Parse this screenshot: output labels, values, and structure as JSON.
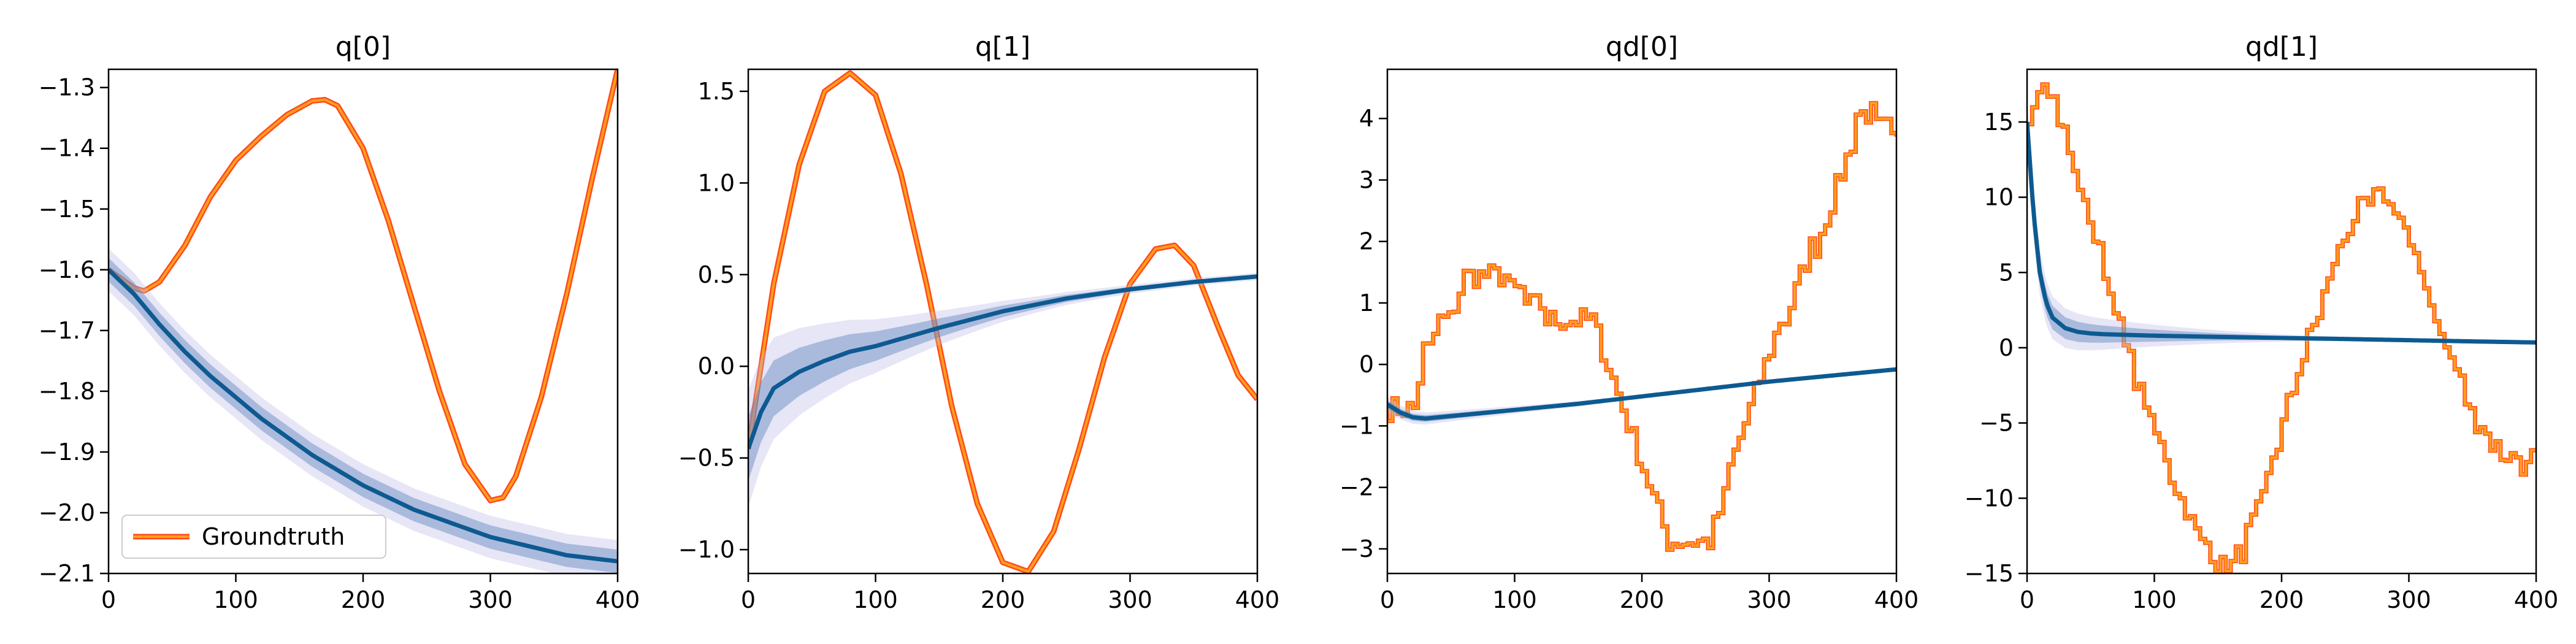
{
  "chart_data": [
    {
      "type": "line",
      "title": "q[0]",
      "xlim": [
        0,
        400
      ],
      "ylim": [
        -2.1,
        -1.27
      ],
      "xticks": [
        0,
        100,
        200,
        300,
        400
      ],
      "yticks": [
        -2.1,
        -2.0,
        -1.9,
        -1.8,
        -1.7,
        -1.6,
        -1.5,
        -1.4,
        -1.3
      ],
      "ytick_labels": [
        "−2.1",
        "−2.0",
        "−1.9",
        "−1.8",
        "−1.7",
        "−1.6",
        "−1.5",
        "−1.4",
        "−1.3"
      ],
      "legend": {
        "label": "Groundtruth",
        "position": "lower-left"
      },
      "series": [
        {
          "name": "Groundtruth",
          "kind": "groundtruth",
          "x": [
            0,
            10,
            20,
            28,
            40,
            60,
            80,
            100,
            120,
            140,
            160,
            170,
            180,
            200,
            220,
            240,
            260,
            280,
            300,
            310,
            320,
            340,
            360,
            380,
            400
          ],
          "y": [
            -1.6,
            -1.615,
            -1.63,
            -1.635,
            -1.62,
            -1.56,
            -1.48,
            -1.42,
            -1.38,
            -1.345,
            -1.322,
            -1.32,
            -1.33,
            -1.4,
            -1.52,
            -1.66,
            -1.8,
            -1.92,
            -1.98,
            -1.975,
            -1.94,
            -1.81,
            -1.64,
            -1.45,
            -1.27
          ]
        },
        {
          "kind": "density",
          "x": [
            0,
            20,
            40,
            60,
            80,
            100,
            120,
            140,
            160,
            180,
            200,
            220,
            240,
            260,
            280,
            300,
            320,
            340,
            360,
            380,
            400
          ],
          "y": [
            -1.6,
            -1.64,
            -1.69,
            -1.735,
            -1.775,
            -1.81,
            -1.845,
            -1.875,
            -1.905,
            -1.93,
            -1.955,
            -1.975,
            -1.995,
            -2.01,
            -2.025,
            -2.04,
            -2.05,
            -2.06,
            -2.07,
            -2.075,
            -2.08
          ],
          "spread_start": 0.0,
          "spread_end": 0.035
        }
      ]
    },
    {
      "type": "line",
      "title": "q[1]",
      "xlim": [
        0,
        400
      ],
      "ylim": [
        -1.13,
        1.62
      ],
      "xticks": [
        0,
        100,
        200,
        300,
        400
      ],
      "yticks": [
        -1.0,
        -0.5,
        0.0,
        0.5,
        1.0,
        1.5
      ],
      "ytick_labels": [
        "−1.0",
        "−0.5",
        "0.0",
        "0.5",
        "1.0",
        "1.5"
      ],
      "series": [
        {
          "name": "Groundtruth",
          "kind": "groundtruth",
          "x": [
            0,
            10,
            20,
            40,
            60,
            80,
            100,
            120,
            140,
            160,
            180,
            200,
            220,
            240,
            260,
            280,
            300,
            320,
            335,
            350,
            370,
            385,
            400
          ],
          "y": [
            -0.45,
            0.0,
            0.45,
            1.1,
            1.5,
            1.6,
            1.48,
            1.05,
            0.45,
            -0.22,
            -0.75,
            -1.07,
            -1.12,
            -0.9,
            -0.45,
            0.05,
            0.45,
            0.64,
            0.66,
            0.55,
            0.2,
            -0.05,
            -0.18
          ]
        },
        {
          "kind": "density",
          "x": [
            0,
            10,
            20,
            40,
            60,
            80,
            100,
            150,
            200,
            250,
            300,
            350,
            400
          ],
          "y": [
            -0.45,
            -0.25,
            -0.12,
            -0.03,
            0.03,
            0.08,
            0.11,
            0.21,
            0.3,
            0.37,
            0.42,
            0.46,
            0.49
          ],
          "spread_start": 0.3,
          "spread_end": 0.02
        }
      ]
    },
    {
      "type": "line",
      "title": "qd[0]",
      "xlim": [
        0,
        400
      ],
      "ylim": [
        -3.4,
        4.8
      ],
      "xticks": [
        0,
        100,
        200,
        300,
        400
      ],
      "yticks": [
        -3,
        -2,
        -1,
        0,
        1,
        2,
        3,
        4
      ],
      "ytick_labels": [
        "−3",
        "−2",
        "−1",
        "0",
        "1",
        "2",
        "3",
        "4"
      ],
      "series": [
        {
          "name": "Groundtruth",
          "kind": "groundtruth-noisy",
          "step": 4,
          "x": [
            0,
            20,
            25,
            40,
            55,
            60,
            80,
            100,
            120,
            140,
            160,
            170,
            180,
            195,
            210,
            225,
            245,
            260,
            270,
            280,
            300,
            320,
            340,
            355,
            370,
            385,
            400
          ],
          "y": [
            -0.65,
            -0.65,
            0.0,
            0.6,
            1.0,
            1.4,
            1.5,
            1.2,
            0.85,
            0.7,
            0.6,
            0.2,
            -0.4,
            -1.4,
            -2.3,
            -3.0,
            -3.0,
            -2.5,
            -1.6,
            -0.9,
            0.2,
            1.2,
            2.2,
            3.1,
            4.1,
            3.9,
            3.6
          ],
          "noise": 0.4
        },
        {
          "kind": "density",
          "x": [
            0,
            10,
            20,
            30,
            40,
            60,
            100,
            150,
            200,
            250,
            300,
            350,
            400
          ],
          "y": [
            -0.65,
            -0.78,
            -0.86,
            -0.88,
            -0.86,
            -0.82,
            -0.74,
            -0.64,
            -0.52,
            -0.4,
            -0.28,
            -0.18,
            -0.08
          ],
          "spread_start": 0.1,
          "spread_end": 0.02
        }
      ]
    },
    {
      "type": "line",
      "title": "qd[1]",
      "xlim": [
        0,
        400
      ],
      "ylim": [
        -15,
        18.5
      ],
      "xticks": [
        0,
        100,
        200,
        300,
        400
      ],
      "yticks": [
        -15,
        -10,
        -5,
        0,
        5,
        10,
        15
      ],
      "ytick_labels": [
        "−15",
        "−10",
        "−5",
        "0",
        "5",
        "10",
        "15"
      ],
      "series": [
        {
          "name": "Groundtruth",
          "kind": "groundtruth-noisy",
          "step": 4,
          "x": [
            0,
            10,
            20,
            30,
            50,
            70,
            90,
            110,
            130,
            150,
            165,
            180,
            200,
            220,
            240,
            260,
            275,
            290,
            310,
            330,
            350,
            370,
            390,
            400
          ],
          "y": [
            15.0,
            18.0,
            16.5,
            13.5,
            8.0,
            2.0,
            -3.5,
            -8.0,
            -12.0,
            -14.5,
            -14.0,
            -11.0,
            -5.0,
            0.5,
            5.5,
            9.0,
            10.3,
            9.0,
            4.5,
            -0.5,
            -4.5,
            -7.0,
            -7.8,
            -7.0
          ],
          "noise": 1.2
        },
        {
          "kind": "density",
          "x": [
            0,
            5,
            10,
            15,
            20,
            30,
            40,
            50,
            60,
            80,
            100,
            150,
            200,
            250,
            300,
            350,
            400
          ],
          "y": [
            15.0,
            9.0,
            5.0,
            3.0,
            2.0,
            1.3,
            1.05,
            0.95,
            0.9,
            0.85,
            0.8,
            0.72,
            0.65,
            0.58,
            0.5,
            0.42,
            0.35
          ],
          "spread_start": 1.6,
          "spread_end": 0.05
        }
      ]
    }
  ],
  "colors": {
    "groundtruth_outline": "#ff4a1c",
    "groundtruth_fill": "#ff9f1c",
    "density": "#0d5a91",
    "axes": "#000000"
  }
}
